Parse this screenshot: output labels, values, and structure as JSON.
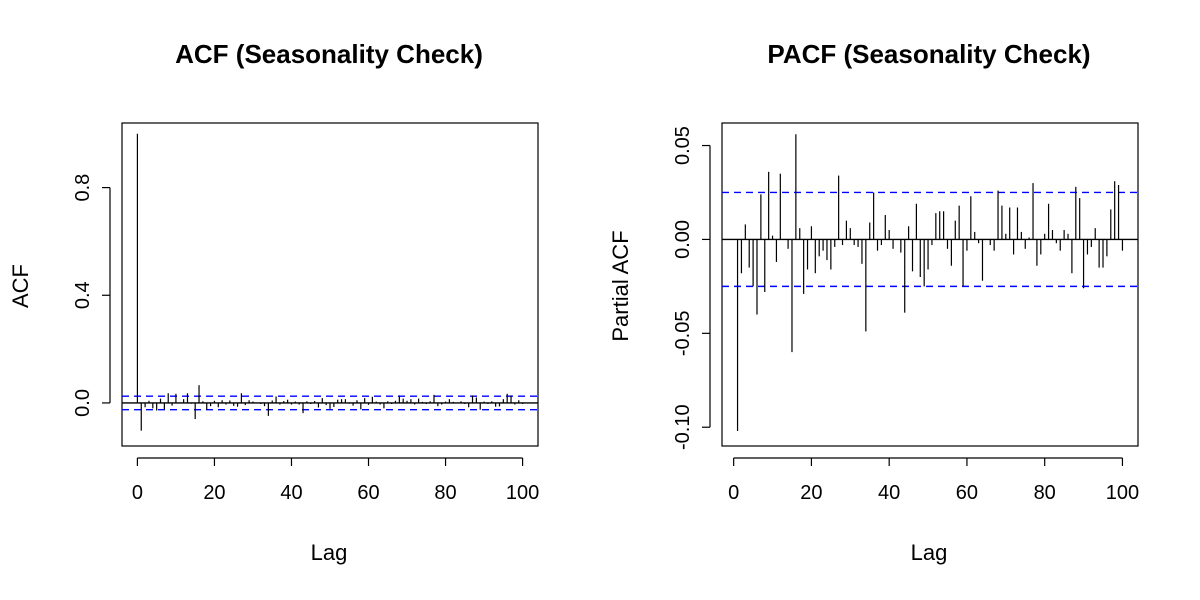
{
  "colors": {
    "bar": "#000000",
    "confidence": "#0000ff",
    "zero_line": "#000000"
  },
  "chart_data": [
    {
      "type": "bar",
      "title": "ACF (Seasonality Check)",
      "xlabel": "Lag",
      "ylabel": "ACF",
      "xlim": [
        -4,
        104
      ],
      "ylim": [
        -0.16,
        1.04
      ],
      "xticks": [
        0,
        20,
        40,
        60,
        80,
        100
      ],
      "yticks": [
        0.0,
        0.4,
        0.8
      ],
      "ytick_labels": [
        "0.0",
        "0.4",
        "0.8"
      ],
      "confidence_band": 0.025,
      "lags": [
        0,
        1,
        2,
        3,
        4,
        5,
        6,
        7,
        8,
        9,
        10,
        11,
        12,
        13,
        14,
        15,
        16,
        17,
        18,
        19,
        20,
        21,
        22,
        23,
        24,
        25,
        26,
        27,
        28,
        29,
        30,
        31,
        32,
        33,
        34,
        35,
        36,
        37,
        38,
        39,
        40,
        41,
        42,
        43,
        44,
        45,
        46,
        47,
        48,
        49,
        50,
        51,
        52,
        53,
        54,
        55,
        56,
        57,
        58,
        59,
        60,
        61,
        62,
        63,
        64,
        65,
        66,
        67,
        68,
        69,
        70,
        71,
        72,
        73,
        74,
        75,
        76,
        77,
        78,
        79,
        80,
        81,
        82,
        83,
        84,
        85,
        86,
        87,
        88,
        89,
        90,
        91,
        92,
        93,
        94,
        95,
        96,
        97,
        98,
        99,
        100
      ],
      "values": [
        1.0,
        -0.103,
        -0.016,
        0.008,
        -0.02,
        -0.028,
        0.016,
        -0.024,
        0.036,
        -0.01,
        0.034,
        0.0,
        0.014,
        0.036,
        -0.003,
        -0.06,
        0.066,
        0.006,
        -0.025,
        -0.012,
        0.008,
        -0.016,
        0.01,
        -0.006,
        0.009,
        -0.011,
        -0.014,
        0.036,
        -0.008,
        0.01,
        0.005,
        -0.002,
        -0.004,
        -0.012,
        -0.048,
        0.009,
        0.024,
        -0.006,
        0.007,
        0.012,
        -0.006,
        0.005,
        -0.006,
        -0.038,
        0.006,
        -0.004,
        0.007,
        -0.017,
        0.018,
        -0.008,
        -0.022,
        -0.015,
        0.012,
        0.014,
        0.014,
        -0.003,
        -0.01,
        0.01,
        -0.024,
        0.018,
        -0.007,
        0.023,
        0.005,
        -0.006,
        -0.02,
        0.006,
        -0.004,
        0.008,
        0.028,
        0.016,
        0.008,
        0.014,
        -0.006,
        0.016,
        0.004,
        -0.004,
        0.006,
        0.03,
        -0.012,
        -0.006,
        0.005,
        0.014,
        0.004,
        -0.002,
        0.006,
        -0.004,
        -0.016,
        0.028,
        0.02,
        -0.025,
        0.005,
        -0.004,
        0.006,
        -0.014,
        -0.013,
        0.014,
        0.034,
        0.028,
        -0.006,
        0.01,
        -0.004
      ]
    },
    {
      "type": "bar",
      "title": "PACF (Seasonality Check)",
      "xlabel": "Lag",
      "ylabel": "Partial ACF",
      "xlim": [
        -3,
        104
      ],
      "ylim": [
        -0.11,
        0.062
      ],
      "xticks": [
        0,
        20,
        40,
        60,
        80,
        100
      ],
      "yticks": [
        -0.1,
        -0.05,
        0.0,
        0.05
      ],
      "ytick_labels": [
        "-0.10",
        "-0.05",
        "0.00",
        "0.05"
      ],
      "confidence_band": 0.025,
      "lags": [
        1,
        2,
        3,
        4,
        5,
        6,
        7,
        8,
        9,
        10,
        11,
        12,
        13,
        14,
        15,
        16,
        17,
        18,
        19,
        20,
        21,
        22,
        23,
        24,
        25,
        26,
        27,
        28,
        29,
        30,
        31,
        32,
        33,
        34,
        35,
        36,
        37,
        38,
        39,
        40,
        41,
        42,
        43,
        44,
        45,
        46,
        47,
        48,
        49,
        50,
        51,
        52,
        53,
        54,
        55,
        56,
        57,
        58,
        59,
        60,
        61,
        62,
        63,
        64,
        65,
        66,
        67,
        68,
        69,
        70,
        71,
        72,
        73,
        74,
        75,
        76,
        77,
        78,
        79,
        80,
        81,
        82,
        83,
        84,
        85,
        86,
        87,
        88,
        89,
        90,
        91,
        92,
        93,
        94,
        95,
        96,
        97,
        98,
        99,
        100
      ],
      "values": [
        -0.102,
        -0.018,
        0.008,
        -0.015,
        -0.025,
        -0.04,
        0.024,
        -0.028,
        0.036,
        0.002,
        -0.012,
        0.035,
        0.0,
        -0.005,
        -0.06,
        0.056,
        0.006,
        -0.029,
        -0.016,
        0.007,
        -0.018,
        -0.009,
        -0.006,
        -0.011,
        -0.016,
        -0.004,
        0.034,
        -0.003,
        0.01,
        0.006,
        -0.003,
        -0.004,
        -0.013,
        -0.049,
        0.009,
        0.025,
        -0.006,
        -0.003,
        0.013,
        0.005,
        -0.005,
        0.0,
        -0.007,
        -0.039,
        0.007,
        -0.017,
        0.019,
        -0.02,
        -0.025,
        -0.016,
        -0.003,
        0.014,
        0.015,
        0.015,
        -0.005,
        -0.014,
        0.01,
        0.018,
        -0.025,
        -0.006,
        0.023,
        0.004,
        -0.002,
        -0.022,
        0.0,
        -0.003,
        -0.006,
        0.026,
        0.018,
        0.003,
        0.017,
        -0.008,
        0.017,
        0.004,
        -0.005,
        0.001,
        0.03,
        -0.014,
        -0.008,
        0.003,
        0.019,
        0.005,
        -0.002,
        -0.006,
        0.005,
        0.003,
        -0.018,
        0.028,
        0.022,
        -0.026,
        -0.008,
        -0.004,
        0.006,
        -0.015,
        -0.015,
        -0.009,
        0.016,
        0.031,
        0.029,
        -0.006,
        0.012
      ]
    }
  ]
}
